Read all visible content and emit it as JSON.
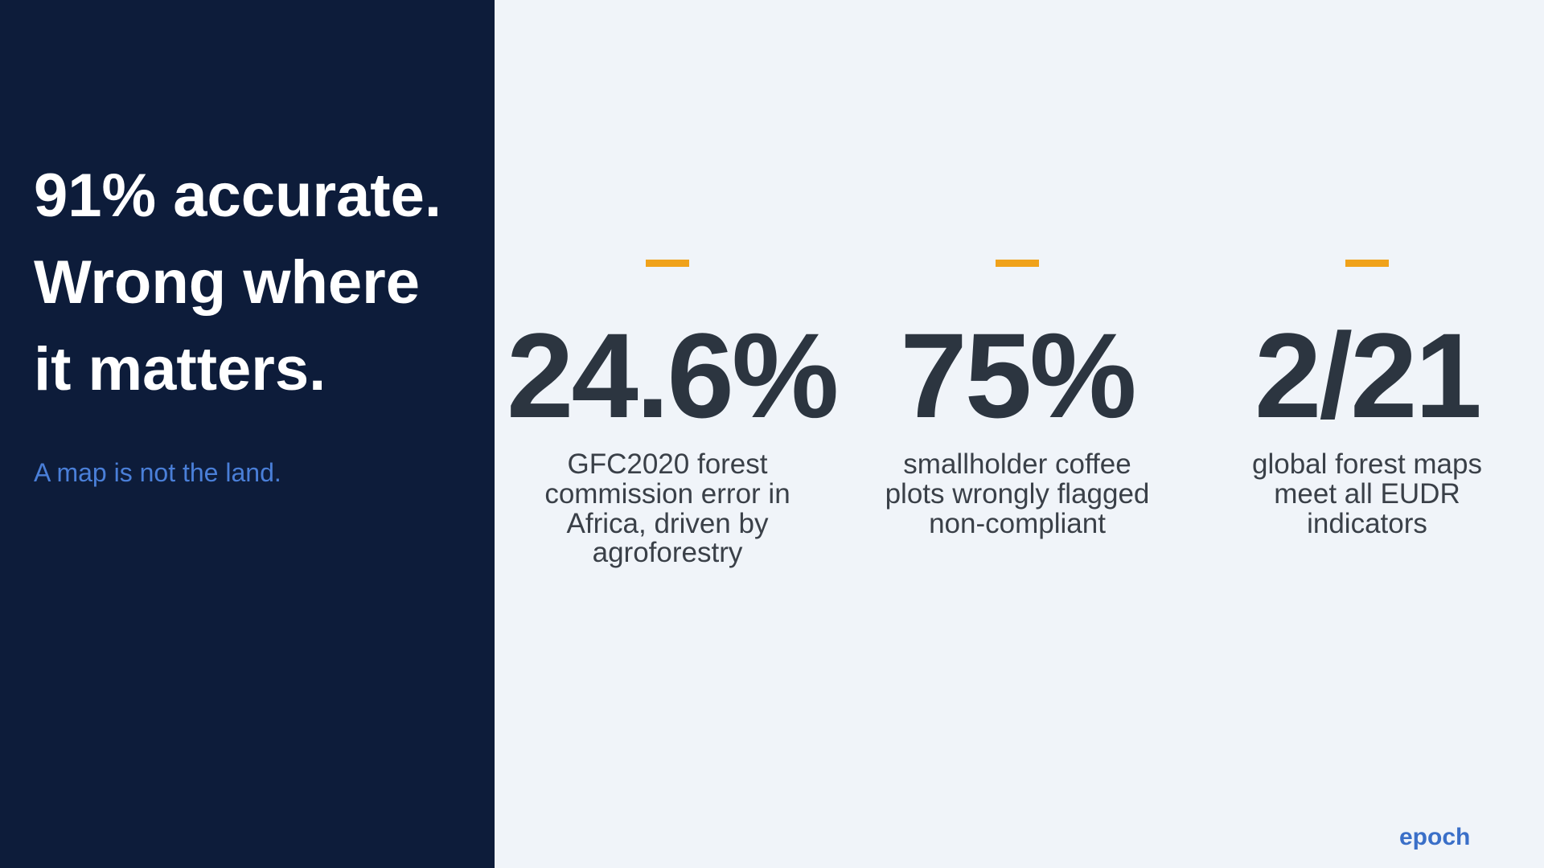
{
  "left_panel": {
    "title_lines": [
      "91% accurate.",
      "Wrong where",
      "it matters."
    ],
    "subtitle": "A map is not the land."
  },
  "stats": [
    {
      "figure": "24.6%",
      "description": "GFC2020 forest commission error in Africa, driven by agroforestry"
    },
    {
      "figure": "75%",
      "description": "smallholder coffee plots wrongly flagged non-compliant"
    },
    {
      "figure": "2/21",
      "description": "global forest maps meet all EUDR indicators"
    }
  ],
  "footer": {
    "brand": "epoch"
  }
}
